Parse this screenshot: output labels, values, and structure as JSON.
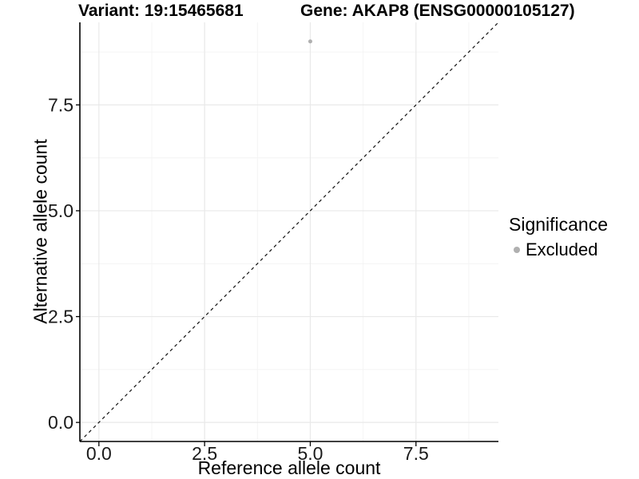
{
  "chart_data": {
    "type": "scatter",
    "title_left": "Variant: 19:15465681",
    "title_right": "Gene: AKAP8 (ENSG00000105127)",
    "xlabel": "Reference allele count",
    "ylabel": "Alternative allele count",
    "xlim": [
      -0.45,
      9.45
    ],
    "ylim": [
      -0.45,
      9.45
    ],
    "x_major_ticks": [
      0.0,
      2.5,
      5.0,
      7.5
    ],
    "y_major_ticks": [
      0.0,
      2.5,
      5.0,
      7.5
    ],
    "x_minor_ticks": [
      1.25,
      3.75,
      6.25,
      8.75
    ],
    "y_minor_ticks": [
      1.25,
      3.75,
      6.25,
      8.75
    ],
    "tick_decimals": 1,
    "grid": "major+minor",
    "points": [
      {
        "x": 5,
        "y": 9,
        "series": "Excluded"
      }
    ],
    "identity_line": {
      "slope": 1,
      "intercept": 0,
      "style": "dashed"
    },
    "legend": {
      "position": "right",
      "title": "Significance",
      "entries": [
        {
          "label": "Excluded",
          "marker": "circle",
          "color": "#b0b0b0"
        }
      ]
    },
    "colors": {
      "point": "#b0b0b0",
      "grid_major": "#e9e9e9",
      "grid_minor": "#f4f4f4",
      "axis_line": "#000000",
      "tick_mark": "#000000",
      "tick_label": "#1a1a1a",
      "identity_line": "#111111"
    }
  }
}
